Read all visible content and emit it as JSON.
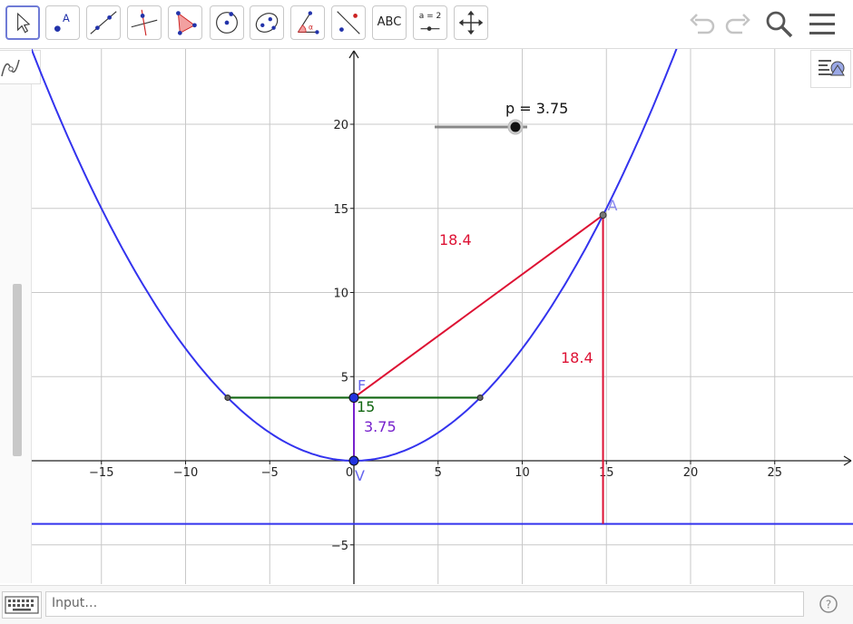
{
  "toolbar": {
    "tools": [
      {
        "name": "move-tool",
        "icon": "arrow-cursor-icon"
      },
      {
        "name": "point-tool",
        "icon": "point-icon",
        "label": "A"
      },
      {
        "name": "line-tool",
        "icon": "line-icon"
      },
      {
        "name": "perpendicular-line-tool",
        "icon": "perpendicular-icon"
      },
      {
        "name": "polygon-tool",
        "icon": "polygon-icon"
      },
      {
        "name": "circle-center-point-tool",
        "icon": "circle-icon"
      },
      {
        "name": "conic-tool",
        "icon": "ellipse-icon"
      },
      {
        "name": "angle-tool",
        "icon": "angle-icon"
      },
      {
        "name": "reflect-tool",
        "icon": "reflect-icon"
      },
      {
        "name": "text-tool",
        "icon": "text-icon",
        "label": "ABC"
      },
      {
        "name": "slider-tool",
        "icon": "slider-icon",
        "label": "a = 2"
      },
      {
        "name": "move-graphics-view-tool",
        "icon": "move-view-icon"
      }
    ],
    "right_icons": [
      "undo-icon",
      "redo-icon",
      "search-icon",
      "menu-icon"
    ]
  },
  "slider": {
    "label": "p = 3.75",
    "min": 0,
    "max": 10,
    "value": 3.75
  },
  "graph": {
    "x_ticks": [
      "−15",
      "−10",
      "−5",
      "0",
      "5",
      "10",
      "15",
      "20",
      "25"
    ],
    "y_ticks": [
      "20",
      "15",
      "10",
      "5",
      "−5"
    ],
    "parabola_p": 3.75,
    "focus": {
      "label": "F",
      "x": 0,
      "y": 3.75
    },
    "vertex": {
      "label": "V",
      "x": 0,
      "y": 0
    },
    "point_a": {
      "label": "A",
      "x": 14.8,
      "y": 14.6
    },
    "directrix_y": -3.75,
    "latus_rectum": {
      "x1": -7.5,
      "x2": 7.5,
      "y": 3.75,
      "label": "15"
    },
    "segment_labels": {
      "fa": "18.4",
      "a_directrix": "18.4",
      "fv": "3.75"
    }
  },
  "colors": {
    "parabola": "#3333ee",
    "segment": "#dd1133",
    "latus": "#116611",
    "purple": "#7722cc"
  },
  "inputbar": {
    "placeholder": "Input…",
    "help_icon": "help-icon",
    "keyboard_icon": "keyboard-icon"
  }
}
